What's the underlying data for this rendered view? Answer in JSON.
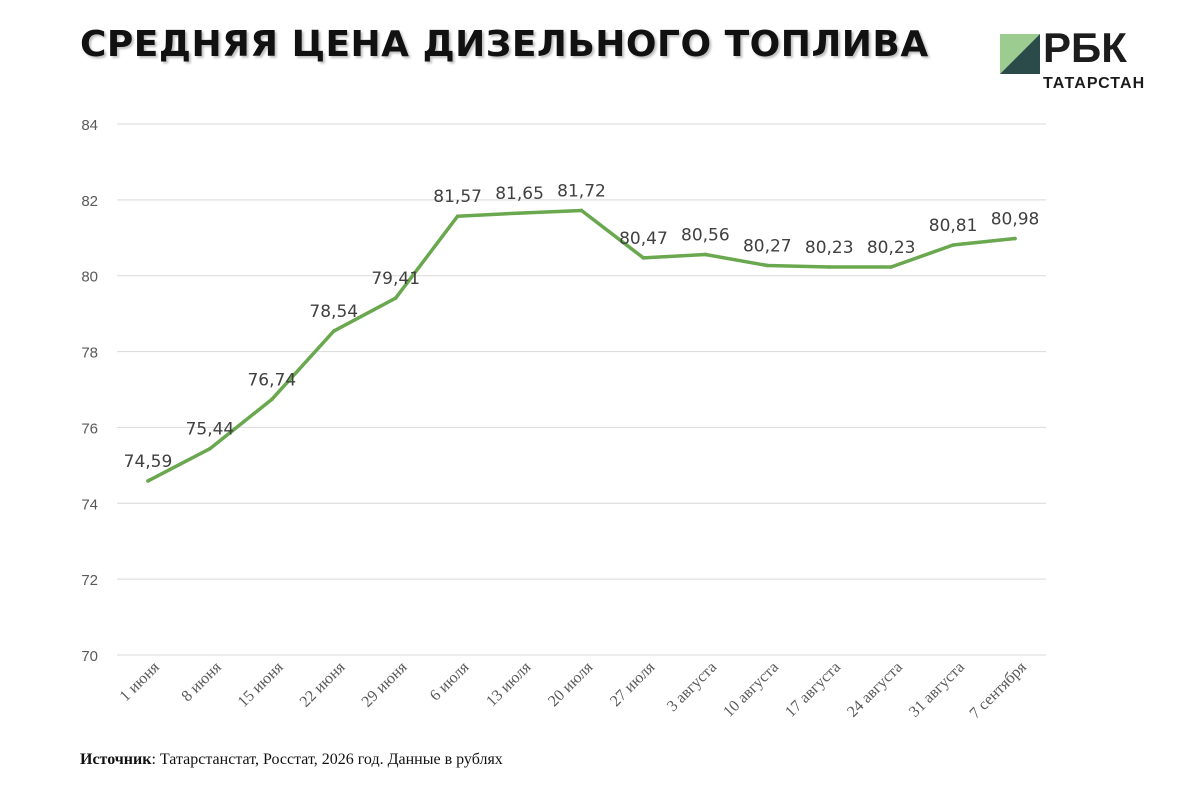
{
  "title": "СРЕДНЯЯ ЦЕНА ДИЗЕЛЬНОГО ТОПЛИВА",
  "logo": {
    "brand": "РБК",
    "region": "ТАТАРСТАН",
    "colors": {
      "dark": "#2b4a4a",
      "light": "#9ccc8f"
    }
  },
  "source": {
    "label": "Источник",
    "text": ": Татарстанстат, Росстат, 2026 год. Данные в рублях"
  },
  "colors": {
    "line": "#6aa84f",
    "grid": "#d9d9d9",
    "axis_text": "#595959",
    "label_text": "#404040"
  },
  "chart_data": {
    "type": "line",
    "title": "",
    "xlabel": "",
    "ylabel": "",
    "categories": [
      "1 июня",
      "8 июня",
      "15 июня",
      "22 июня",
      "29 июня",
      "6 июля",
      "13 июля",
      "20 июля",
      "27 июля",
      "3 августа",
      "10 августа",
      "17 августа",
      "24 августа",
      "31 августа",
      "7 сентября"
    ],
    "values": [
      74.59,
      75.44,
      76.74,
      78.54,
      79.41,
      81.57,
      81.65,
      81.72,
      80.47,
      80.56,
      80.27,
      80.23,
      80.23,
      80.81,
      80.98
    ],
    "data_labels": [
      "74,59",
      "75,44",
      "76,74",
      "78,54",
      "79,41",
      "81,57",
      "81,65",
      "81,72",
      "80,47",
      "80,56",
      "80,27",
      "80,23",
      "80,23",
      "80,81",
      "80,98"
    ],
    "yticks": [
      "70",
      "72",
      "74",
      "76",
      "78",
      "80",
      "82",
      "84"
    ],
    "ylim": [
      70,
      84
    ],
    "grid": true,
    "legend": "none"
  }
}
